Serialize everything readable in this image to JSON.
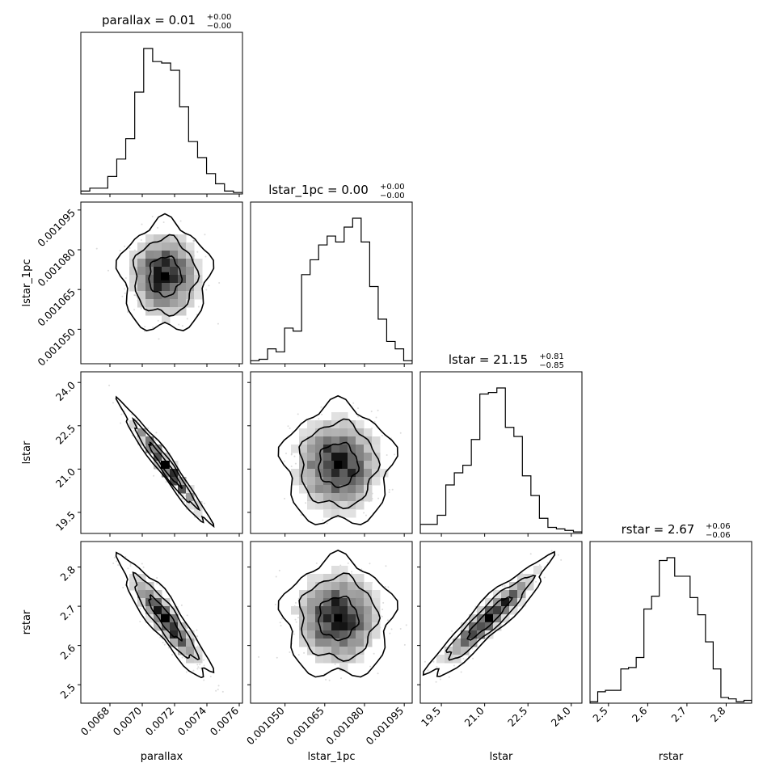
{
  "chart_data": {
    "type": "corner",
    "params": [
      "parallax",
      "lstar_1pc",
      "lstar",
      "rstar"
    ],
    "titles": [
      {
        "label": "parallax",
        "median": "0.01",
        "plus": "+0.00",
        "minus": "−0.00"
      },
      {
        "label": "lstar_1pc",
        "median": "0.00",
        "plus": "+0.00",
        "minus": "−0.00"
      },
      {
        "label": "lstar",
        "median": "21.15",
        "plus": "+0.81",
        "minus": "−0.85"
      },
      {
        "label": "rstar",
        "median": "2.67",
        "plus": "+0.06",
        "minus": "−0.06"
      }
    ],
    "ranges": [
      [
        0.00662,
        0.00762
      ],
      [
        0.001037,
        0.001098
      ],
      [
        18.77,
        24.37
      ],
      [
        2.453,
        2.865
      ]
    ],
    "ticks": [
      {
        "values": [
          0.0068,
          0.007,
          0.0072,
          0.0074,
          0.0076
        ],
        "labels": [
          "0.0068",
          "0.0070",
          "0.0072",
          "0.0074",
          "0.0076"
        ]
      },
      {
        "values": [
          0.00105,
          0.001065,
          0.00108,
          0.001095
        ],
        "labels": [
          "0.001050",
          "0.001065",
          "0.001080",
          "0.001095"
        ]
      },
      {
        "values": [
          19.5,
          21.0,
          22.5,
          24.0
        ],
        "labels": [
          "19.5",
          "21.0",
          "22.5",
          "24.0"
        ]
      },
      {
        "values": [
          2.5,
          2.6,
          2.7,
          2.8
        ],
        "labels": [
          "2.5",
          "2.6",
          "2.7",
          "2.8"
        ]
      }
    ],
    "histograms": [
      [
        0.02,
        0.04,
        0.04,
        0.12,
        0.24,
        0.38,
        0.7,
        1.0,
        0.91,
        0.9,
        0.85,
        0.6,
        0.36,
        0.25,
        0.14,
        0.07,
        0.02,
        0.01
      ],
      [
        0.02,
        0.03,
        0.1,
        0.08,
        0.24,
        0.22,
        0.6,
        0.7,
        0.8,
        0.86,
        0.82,
        0.92,
        0.98,
        0.82,
        0.52,
        0.3,
        0.15,
        0.1,
        0.02
      ],
      [
        0.06,
        0.06,
        0.12,
        0.32,
        0.4,
        0.45,
        0.62,
        0.92,
        0.93,
        0.96,
        0.7,
        0.64,
        0.38,
        0.25,
        0.1,
        0.04,
        0.03,
        0.02,
        0.01
      ],
      [
        0.01,
        0.08,
        0.09,
        0.09,
        0.24,
        0.25,
        0.32,
        0.66,
        0.75,
        1.0,
        1.02,
        0.89,
        0.89,
        0.74,
        0.62,
        0.43,
        0.24,
        0.04,
        0.03,
        0.01,
        0.02
      ]
    ],
    "pairs": [
      {
        "i": 1,
        "j": 0,
        "median": [
          0.00714,
          0.00107
        ],
        "spread": [
          0.00011,
          8.2e-06
        ],
        "rho": 0.0
      },
      {
        "i": 2,
        "j": 0,
        "median": [
          0.00714,
          21.15
        ],
        "spread": [
          0.00011,
          0.83
        ],
        "rho": -0.97
      },
      {
        "i": 2,
        "j": 1,
        "median": [
          0.00107,
          21.15
        ],
        "spread": [
          8.2e-06,
          0.83
        ],
        "rho": 0.0
      },
      {
        "i": 3,
        "j": 0,
        "median": [
          0.00714,
          2.67
        ],
        "spread": [
          0.00011,
          0.06
        ],
        "rho": -0.9
      },
      {
        "i": 3,
        "j": 1,
        "median": [
          0.00107,
          2.67
        ],
        "spread": [
          8.2e-06,
          0.06
        ],
        "rho": 0.0
      },
      {
        "i": 3,
        "j": 2,
        "median": [
          21.15,
          2.67
        ],
        "spread": [
          0.83,
          0.06
        ],
        "rho": 0.93
      }
    ],
    "xlabels": [
      "parallax",
      "lstar_1pc",
      "lstar",
      "rstar"
    ],
    "ylabels": [
      "",
      "lstar_1pc",
      "lstar",
      "rstar"
    ]
  }
}
